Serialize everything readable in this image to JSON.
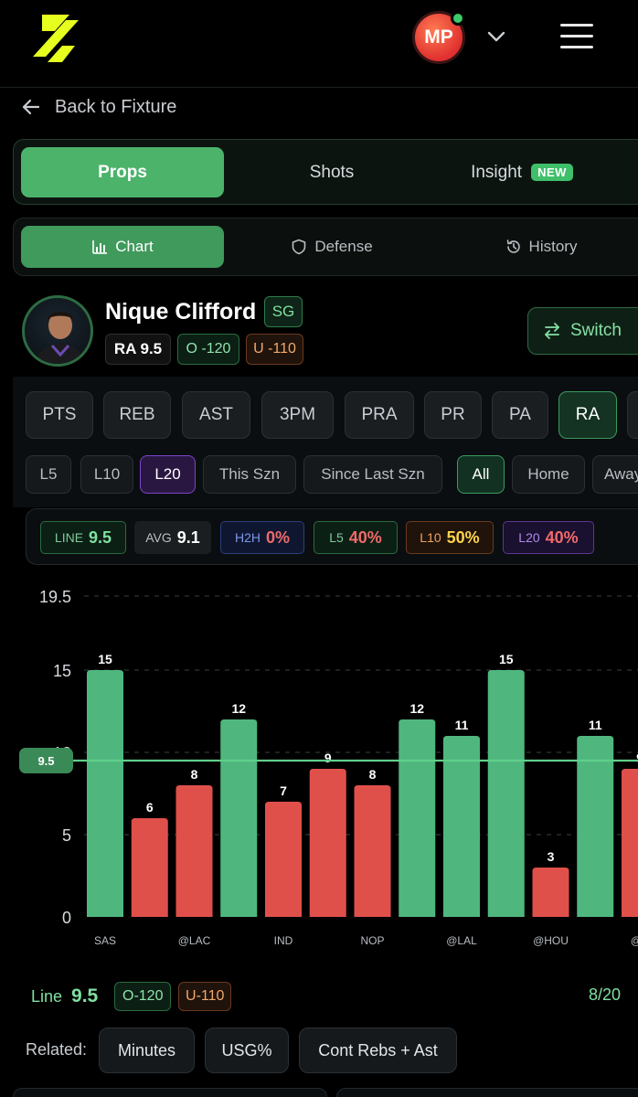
{
  "header": {
    "avatar_initials": "MP"
  },
  "nav": {
    "back_label": "Back to Fixture"
  },
  "main_tabs": [
    {
      "label": "Props",
      "active": true
    },
    {
      "label": "Shots",
      "active": false
    },
    {
      "label": "Insight",
      "active": false,
      "badge": "NEW"
    }
  ],
  "sub_tabs": [
    {
      "label": "Chart",
      "icon": "bar-chart-icon",
      "active": true
    },
    {
      "label": "Defense",
      "icon": "shield-icon",
      "active": false
    },
    {
      "label": "History",
      "icon": "history-icon",
      "active": false
    }
  ],
  "player": {
    "name": "Nique Clifford",
    "position": "SG",
    "prop_label": "RA 9.5",
    "over_label": "O -120",
    "under_label": "U -110",
    "switch_label": "Switch"
  },
  "stat_types": [
    "PTS",
    "REB",
    "AST",
    "3PM",
    "PRA",
    "PR",
    "PA",
    "RA",
    ""
  ],
  "active_stat": "RA",
  "filters": {
    "ranges": [
      "L5",
      "L10",
      "L20",
      "This Szn",
      "Since Last Szn"
    ],
    "active_range": "L20",
    "venues": [
      "All",
      "Home",
      "Away"
    ],
    "active_venue": "All"
  },
  "summary_pills": [
    {
      "key": "LINE",
      "value": "9.5",
      "theme": "green"
    },
    {
      "key": "AVG",
      "value": "9.1",
      "theme": "gray"
    },
    {
      "key": "H2H",
      "value": "0%",
      "theme": "blue"
    },
    {
      "key": "L5",
      "value": "40%",
      "theme": "green"
    },
    {
      "key": "L10",
      "value": "50%",
      "theme": "orange"
    },
    {
      "key": "L20",
      "value": "40%",
      "theme": "purple"
    }
  ],
  "colors": {
    "over": "#4fb77e",
    "under": "#e0504a",
    "line": "#5fcf8b",
    "accent": "#4cb36a"
  },
  "chart_data": {
    "type": "bar",
    "categories": [
      "SAS",
      "",
      "@LAC",
      "",
      "IND",
      "",
      "NOP",
      "",
      "@LAL",
      "",
      "@HOU",
      "",
      "@S"
    ],
    "values": [
      15,
      6,
      8,
      12,
      7,
      9,
      8,
      12,
      11,
      15,
      3,
      11,
      9
    ],
    "line": 9.5,
    "line_label": "9.5",
    "y_ticks": [
      "0",
      "5",
      "10",
      "15",
      "19.5"
    ],
    "ylim": [
      0,
      19.5
    ]
  },
  "footer": {
    "line_label": "Line",
    "line_value": "9.5",
    "over_label": "O-120",
    "under_label": "U-110",
    "hit_count": "8/20"
  },
  "related": {
    "label": "Related:",
    "items": [
      "Minutes",
      "USG%",
      "Cont Rebs + Ast"
    ]
  }
}
